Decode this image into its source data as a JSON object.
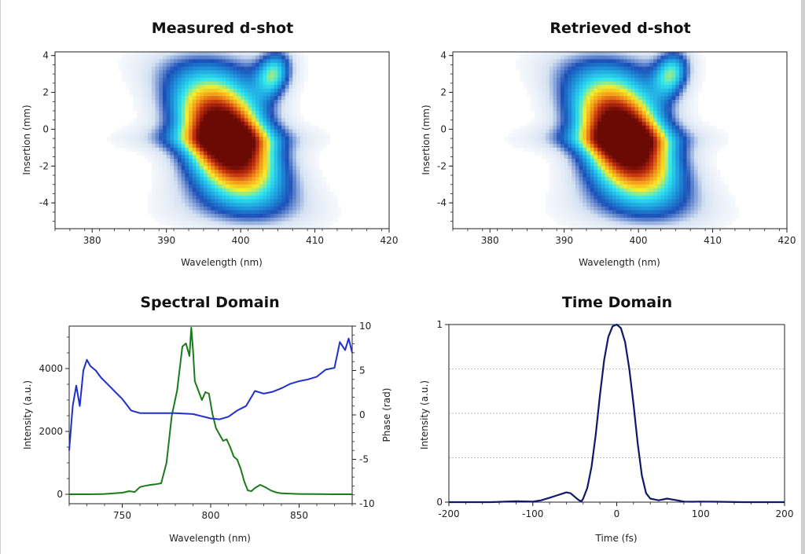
{
  "chart_data": [
    {
      "type": "heatmap",
      "title": "Measured d-shot",
      "xlabel": "Wavelength (nm)",
      "ylabel": "Insertion (mm)",
      "xlim": [
        375,
        420
      ],
      "ylim": [
        -5.4,
        4.2
      ],
      "xticks": [
        380,
        390,
        400,
        410,
        420
      ],
      "yticks": [
        4,
        2,
        0,
        -2,
        -4
      ],
      "colormap": [
        "#ffffff",
        "#d6e2f2",
        "#1c4fb8",
        "#1f9fe0",
        "#2fe6ef",
        "#f7ee2a",
        "#f4941a",
        "#c02d0f",
        "#6b0a05"
      ],
      "peak": {
        "wavelength": 398,
        "insertion": -0.5
      }
    },
    {
      "type": "heatmap",
      "title": "Retrieved d-shot",
      "xlabel": "Wavelength (nm)",
      "ylabel": "Insertion (mm)",
      "xlim": [
        375,
        420
      ],
      "ylim": [
        -5.4,
        4.2
      ],
      "xticks": [
        380,
        390,
        400,
        410,
        420
      ],
      "yticks": [
        4,
        2,
        0,
        -2,
        -4
      ],
      "colormap": [
        "#ffffff",
        "#d6e2f2",
        "#1c4fb8",
        "#1f9fe0",
        "#2fe6ef",
        "#f7ee2a",
        "#f4941a",
        "#c02d0f",
        "#6b0a05"
      ],
      "peak": {
        "wavelength": 398,
        "insertion": -0.5
      }
    },
    {
      "type": "line",
      "title": "Spectral Domain",
      "xlabel": "Wavelength (nm)",
      "ylabel": "Intensity (a.u.)",
      "y2label": "Phase (rad)",
      "xlim": [
        720,
        880
      ],
      "ylim": [
        -300,
        5350
      ],
      "y2lim": [
        -10,
        10
      ],
      "xticks": [
        750,
        800,
        850
      ],
      "yticks": [
        0,
        2000,
        4000
      ],
      "y2ticks": [
        10,
        5,
        0,
        -5,
        -10
      ],
      "series": [
        {
          "axis": "left",
          "color": "#1b7a1b",
          "x": [
            720,
            730,
            740,
            750,
            754,
            757,
            760,
            763,
            766,
            769,
            772,
            775,
            778,
            781,
            784,
            786,
            788,
            789,
            790,
            791,
            793,
            795,
            797,
            799,
            801,
            803,
            805,
            807,
            809,
            811,
            813,
            815,
            817,
            819,
            821,
            823,
            825,
            828,
            831,
            834,
            837,
            840,
            850,
            860,
            870,
            880
          ],
          "y": [
            0,
            0,
            10,
            50,
            100,
            70,
            230,
            270,
            300,
            320,
            350,
            1000,
            2500,
            3300,
            4700,
            4800,
            4400,
            5300,
            4600,
            3600,
            3300,
            3000,
            3250,
            3200,
            2550,
            2100,
            1900,
            1700,
            1750,
            1500,
            1200,
            1100,
            800,
            400,
            120,
            100,
            200,
            300,
            220,
            120,
            60,
            30,
            10,
            5,
            0,
            0
          ]
        },
        {
          "axis": "right",
          "color": "#1f2ecf",
          "x": [
            720,
            722,
            724,
            726,
            728,
            730,
            732,
            735,
            738,
            741,
            745,
            750,
            755,
            760,
            770,
            780,
            790,
            800,
            805,
            810,
            815,
            820,
            825,
            830,
            835,
            840,
            845,
            850,
            855,
            860,
            865,
            870,
            873,
            876,
            878,
            880
          ],
          "y": [
            -4,
            1,
            3.3,
            1,
            5,
            6.2,
            5.5,
            5,
            4.2,
            3.6,
            2.8,
            1.8,
            0.5,
            0.2,
            0.2,
            0.2,
            0.1,
            -0.4,
            -0.5,
            -0.2,
            0.5,
            1,
            2.7,
            2.4,
            2.6,
            3,
            3.5,
            3.8,
            4,
            4.3,
            5.1,
            5.3,
            8.2,
            7.3,
            8.6,
            7
          ]
        }
      ]
    },
    {
      "type": "line",
      "title": "Time Domain",
      "xlabel": "Time (fs)",
      "ylabel": "Intensity (a.u.)",
      "xlim": [
        -200,
        200
      ],
      "ylim": [
        0,
        1
      ],
      "xticks": [
        -200,
        -100,
        0,
        100,
        200
      ],
      "yticks": [
        0,
        1
      ],
      "grid_y": [
        0.25,
        0.5,
        0.75
      ],
      "series": [
        {
          "color": "#10186a",
          "x": [
            -200,
            -150,
            -120,
            -100,
            -90,
            -80,
            -70,
            -60,
            -55,
            -50,
            -45,
            -42,
            -40,
            -35,
            -30,
            -25,
            -20,
            -15,
            -10,
            -5,
            0,
            5,
            10,
            15,
            20,
            25,
            30,
            35,
            40,
            45,
            50,
            60,
            70,
            80,
            90,
            100,
            120,
            150,
            200
          ],
          "y": [
            0,
            0,
            0.005,
            0.003,
            0.01,
            0.025,
            0.04,
            0.055,
            0.05,
            0.03,
            0.01,
            0.005,
            0.02,
            0.08,
            0.2,
            0.38,
            0.6,
            0.8,
            0.93,
            0.99,
            1,
            0.98,
            0.9,
            0.75,
            0.55,
            0.33,
            0.15,
            0.05,
            0.02,
            0.015,
            0.01,
            0.02,
            0.012,
            0.003,
            0.002,
            0.003,
            0.002,
            0,
            0
          ]
        }
      ]
    }
  ]
}
